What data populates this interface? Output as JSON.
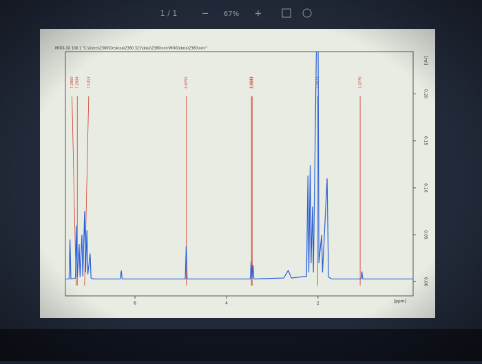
{
  "toolbar": {
    "page": "1 / 1",
    "zoom_out": "−",
    "zoom": "67%",
    "zoom_in": "+"
  },
  "chart_data": {
    "type": "line",
    "title": "MOGl-1G 100 1 \"C:\\Users\\2380\\Desktop\\2380 321\\data\\2380\\nmr\\MOGl\\data\\2380\\nmr\"",
    "x_label": "[ppm]",
    "y_label": "[rel]",
    "x": [
      7.52,
      7.44,
      7.42,
      7.4,
      7.3,
      7.28,
      7.26,
      7.22,
      7.2,
      7.16,
      7.14,
      7.1,
      7.08,
      7.05,
      7.03,
      6.98,
      6.96,
      6.9,
      6.32,
      6.3,
      6.28,
      4.9,
      4.88,
      4.86,
      3.48,
      3.46,
      3.44,
      3.42,
      3.4,
      2.75,
      2.65,
      2.58,
      2.25,
      2.22,
      2.2,
      2.17,
      2.15,
      2.12,
      2.1,
      2.02,
      2.0,
      1.98,
      1.92,
      1.9,
      1.8,
      1.77,
      1.7,
      1.06,
      1.04,
      1.02,
      -0.08
    ],
    "values": [
      0.003,
      0.003,
      0.045,
      0.003,
      0.004,
      0.06,
      0.005,
      0.04,
      0.005,
      0.05,
      0.006,
      0.075,
      0.01,
      0.055,
      0.008,
      0.03,
      0.004,
      0.003,
      0.003,
      0.012,
      0.003,
      0.003,
      0.038,
      0.003,
      0.003,
      0.022,
      0.004,
      0.018,
      0.003,
      0.004,
      0.012,
      0.004,
      0.006,
      0.113,
      0.01,
      0.124,
      0.02,
      0.08,
      0.01,
      0.3,
      0.3,
      0.02,
      0.05,
      0.01,
      0.11,
      0.005,
      0.003,
      0.003,
      0.011,
      0.003,
      0.003
    ],
    "color": "#2a5fd6",
    "xlim": [
      7.52,
      -0.08
    ],
    "ylim": [
      -0.015,
      0.245
    ],
    "xticks": [
      6,
      4,
      2
    ],
    "yticks": [
      {
        "value": 0,
        "label": "0.00"
      },
      {
        "value": 0.05,
        "label": "0.05"
      },
      {
        "value": 0.1,
        "label": "0.10"
      },
      {
        "value": 0.15,
        "label": "0.15"
      },
      {
        "value": 0.2,
        "label": "0.20"
      }
    ],
    "peak_labels": [
      {
        "value": 7.286,
        "label": "7.2860"
      },
      {
        "value": 7.2604,
        "label": "7.2604"
      },
      {
        "value": 7.1013,
        "label": "7.1013"
      },
      {
        "value": 4.8755,
        "label": "4.8755"
      },
      {
        "value": 3.4543,
        "label": "3.4543"
      },
      {
        "value": 3.4383,
        "label": "3.4383"
      },
      {
        "value": 2.0073,
        "label": "2.0073"
      },
      {
        "value": 1.0776,
        "label": "1.0776"
      }
    ],
    "peak_color": "#d23a2a"
  }
}
